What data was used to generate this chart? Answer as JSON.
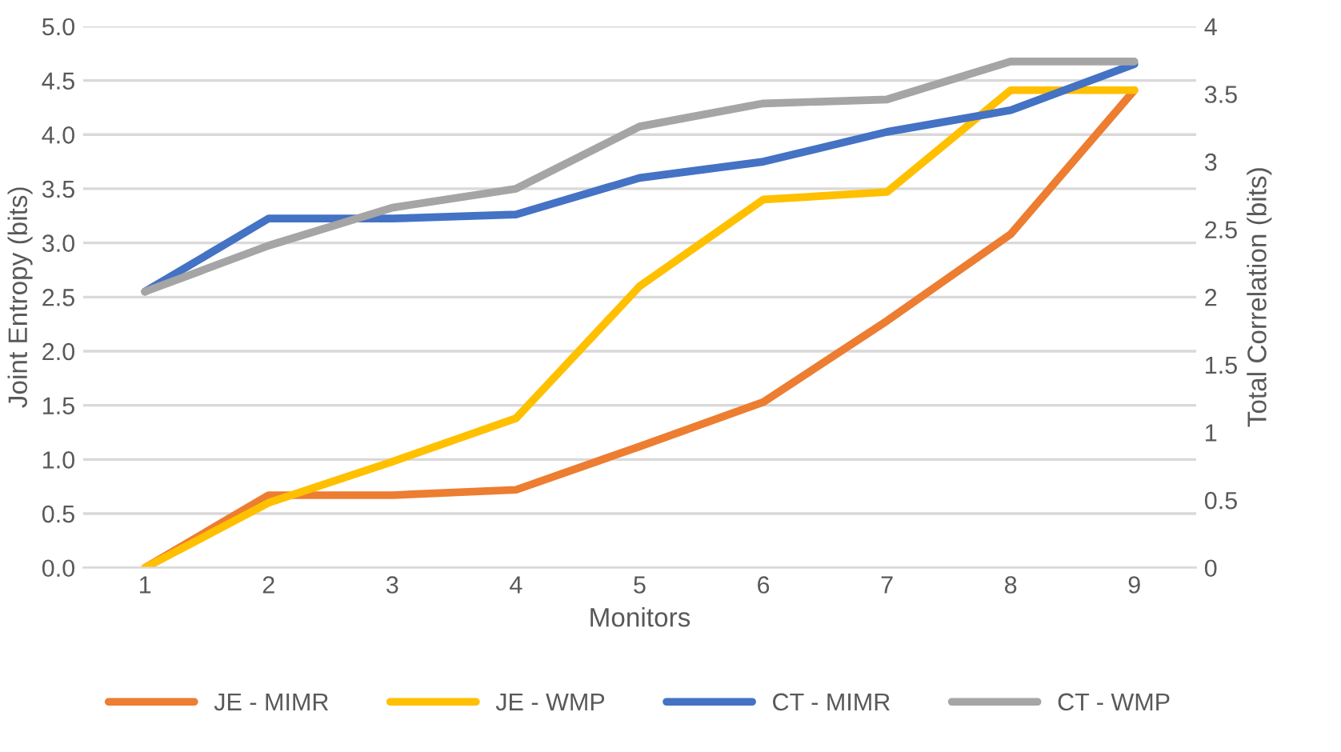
{
  "chart_data": {
    "type": "line",
    "xlabel": "Monitors",
    "ylabel": "Joint Entropy (bits)",
    "y2label": "Total Correlation (bits)",
    "categories": [
      "1",
      "2",
      "3",
      "4",
      "5",
      "6",
      "7",
      "8",
      "9"
    ],
    "series": [
      {
        "name": "JE - MIMR",
        "color": "#ed7d31",
        "values": [
          0,
          0.67,
          0.67,
          0.72,
          1.12,
          1.53,
          2.28,
          3.08,
          4.41
        ]
      },
      {
        "name": "JE - WMP",
        "color": "#ffc000",
        "values": [
          0,
          0.6,
          0.98,
          1.38,
          2.6,
          3.4,
          3.47,
          4.41,
          4.41
        ]
      },
      {
        "name": "CT - MIMR",
        "color": "#4472c4",
        "axis": "y2",
        "values": [
          2.04,
          2.58,
          2.58,
          2.61,
          2.88,
          3.0,
          3.22,
          3.38,
          3.72
        ]
      },
      {
        "name": "CT - WMP",
        "color": "#a5a5a5",
        "axis": "y2",
        "values": [
          2.04,
          2.38,
          2.66,
          2.8,
          3.26,
          3.43,
          3.46,
          3.74,
          3.74
        ]
      }
    ],
    "ylim": [
      0,
      5
    ],
    "yticks": [
      {
        "value": 0,
        "label": "0.0"
      },
      {
        "value": 0.5,
        "label": "0.5"
      },
      {
        "value": 1,
        "label": "1.0"
      },
      {
        "value": 1.5,
        "label": "1.5"
      },
      {
        "value": 2,
        "label": "2.0"
      },
      {
        "value": 2.5,
        "label": "2.5"
      },
      {
        "value": 3,
        "label": "3.0"
      },
      {
        "value": 3.5,
        "label": "3.5"
      },
      {
        "value": 4,
        "label": "4.0"
      },
      {
        "value": 4.5,
        "label": "4.5"
      },
      {
        "value": 5,
        "label": "5.0"
      }
    ],
    "y2lim": [
      0,
      4
    ],
    "y2ticks": [
      0,
      0.5,
      1,
      1.5,
      2,
      2.5,
      3,
      3.5,
      4
    ],
    "grid": "y",
    "legend": "bottom",
    "marker": "none",
    "line_style": "solid"
  }
}
